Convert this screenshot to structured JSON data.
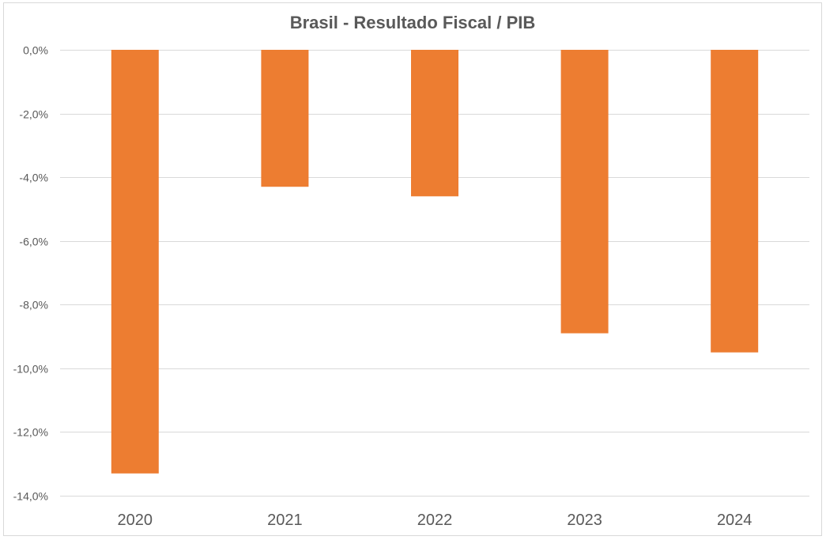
{
  "chart_data": {
    "type": "bar",
    "title": "Brasil - Resultado Fiscal / PIB",
    "xlabel": "",
    "ylabel": "",
    "categories": [
      "2020",
      "2021",
      "2022",
      "2023",
      "2024"
    ],
    "values": [
      -13.3,
      -4.3,
      -4.6,
      -8.9,
      -9.5
    ],
    "ylim": [
      -14,
      0
    ],
    "yticks": [
      0,
      -2,
      -4,
      -6,
      -8,
      -10,
      -12,
      -14
    ],
    "ytick_labels": [
      "0,0%",
      "-2,0%",
      "-4,0%",
      "-6,0%",
      "-8,0%",
      "-10,0%",
      "-12,0%",
      "-14,0%"
    ],
    "grid": true,
    "legend": "none",
    "bar_color": "#ED7D31"
  }
}
